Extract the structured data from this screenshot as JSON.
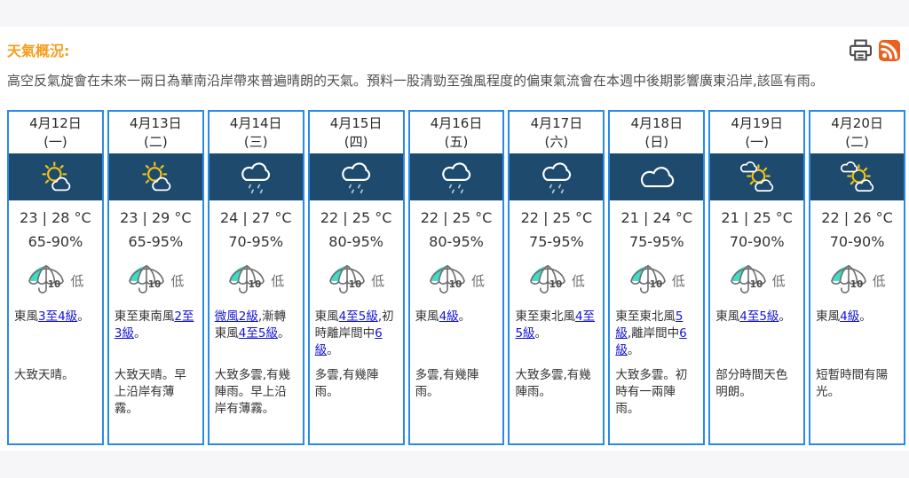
{
  "header": {
    "title": "天氣概況:",
    "title_color": "#f89c1c",
    "print_icon": "print-icon",
    "rss_icon": "rss-icon"
  },
  "summary": "高空反氣旋會在未來一兩日為華南沿岸帶來普遍晴朗的天氣。預料一股清勁至強風程度的偏東氣流會在本週中後期影響廣東沿岸,該區有雨。",
  "colors": {
    "card_border": "#2a8ae8",
    "icon_band": "#1e4a6d",
    "sun_yellow": "#f3c418",
    "rain_drop": "#aac3da",
    "psr_teal": "#3fdbc5",
    "rss_orange": "#e9611b"
  },
  "forecast": {
    "cards": [
      {
        "date": "4月12日",
        "weekday": "(一)",
        "icon": "sun-cloud-icon",
        "temp": "23 | 28 °C",
        "humidity": "65-90%",
        "psr_value": "10",
        "psr_label": "低",
        "wind": [
          {
            "t": "東風"
          },
          {
            "t": "3至4級",
            "link": true
          },
          {
            "t": "。"
          }
        ],
        "desc": "大致天晴。"
      },
      {
        "date": "4月13日",
        "weekday": "(二)",
        "icon": "sun-cloud-icon",
        "temp": "23 | 29 °C",
        "humidity": "65-95%",
        "psr_value": "10",
        "psr_label": "低",
        "wind": [
          {
            "t": "東至東南風"
          },
          {
            "t": "2至3級",
            "link": true
          },
          {
            "t": "。"
          }
        ],
        "desc": "大致天晴。早上沿岸有薄霧。"
      },
      {
        "date": "4月14日",
        "weekday": "(三)",
        "icon": "rain-icon",
        "temp": "24 | 27 °C",
        "humidity": "70-95%",
        "psr_value": "10",
        "psr_label": "低",
        "wind": [
          {
            "t": "微風2級",
            "link": true
          },
          {
            "t": ",漸轉東風"
          },
          {
            "t": "4至5級",
            "link": true
          },
          {
            "t": "。"
          }
        ],
        "desc": "大致多雲,有幾陣雨。早上沿岸有薄霧。"
      },
      {
        "date": "4月15日",
        "weekday": "(四)",
        "icon": "rain-icon",
        "temp": "22 | 25 °C",
        "humidity": "80-95%",
        "psr_value": "10",
        "psr_label": "低",
        "wind": [
          {
            "t": "東風"
          },
          {
            "t": "4至5級",
            "link": true
          },
          {
            "t": ",初時離岸間中"
          },
          {
            "t": "6級",
            "link": true
          },
          {
            "t": "。"
          }
        ],
        "desc": "多雲,有幾陣雨。"
      },
      {
        "date": "4月16日",
        "weekday": "(五)",
        "icon": "rain-icon",
        "temp": "22 | 25 °C",
        "humidity": "80-95%",
        "psr_value": "10",
        "psr_label": "低",
        "wind": [
          {
            "t": "東風"
          },
          {
            "t": "4級",
            "link": true
          },
          {
            "t": "。"
          }
        ],
        "desc": "多雲,有幾陣雨。"
      },
      {
        "date": "4月17日",
        "weekday": "(六)",
        "icon": "rain-icon",
        "temp": "22 | 25 °C",
        "humidity": "75-95%",
        "psr_value": "10",
        "psr_label": "低",
        "wind": [
          {
            "t": "東至東北風"
          },
          {
            "t": "4至5級",
            "link": true
          },
          {
            "t": "。"
          }
        ],
        "desc": "大致多雲,有幾陣雨。"
      },
      {
        "date": "4月18日",
        "weekday": "(日)",
        "icon": "cloud-icon",
        "temp": "21 | 24 °C",
        "humidity": "75-95%",
        "psr_value": "10",
        "psr_label": "低",
        "wind": [
          {
            "t": "東至東北風"
          },
          {
            "t": "5級",
            "link": true
          },
          {
            "t": ",離岸間中"
          },
          {
            "t": "6級",
            "link": true
          },
          {
            "t": "。"
          }
        ],
        "desc": "大致多雲。初時有一兩陣雨。"
      },
      {
        "date": "4月19日",
        "weekday": "(一)",
        "icon": "sun-between-clouds-icon",
        "temp": "21 | 25 °C",
        "humidity": "70-90%",
        "psr_value": "10",
        "psr_label": "低",
        "wind": [
          {
            "t": "東風"
          },
          {
            "t": "4至5級",
            "link": true
          },
          {
            "t": "。"
          }
        ],
        "desc": "部分時間天色明朗。"
      },
      {
        "date": "4月20日",
        "weekday": "(二)",
        "icon": "sun-between-clouds-icon",
        "temp": "22 | 26 °C",
        "humidity": "70-90%",
        "psr_value": "10",
        "psr_label": "低",
        "wind": [
          {
            "t": "東風"
          },
          {
            "t": "4級",
            "link": true
          },
          {
            "t": "。"
          }
        ],
        "desc": "短暫時間有陽光。"
      }
    ]
  }
}
